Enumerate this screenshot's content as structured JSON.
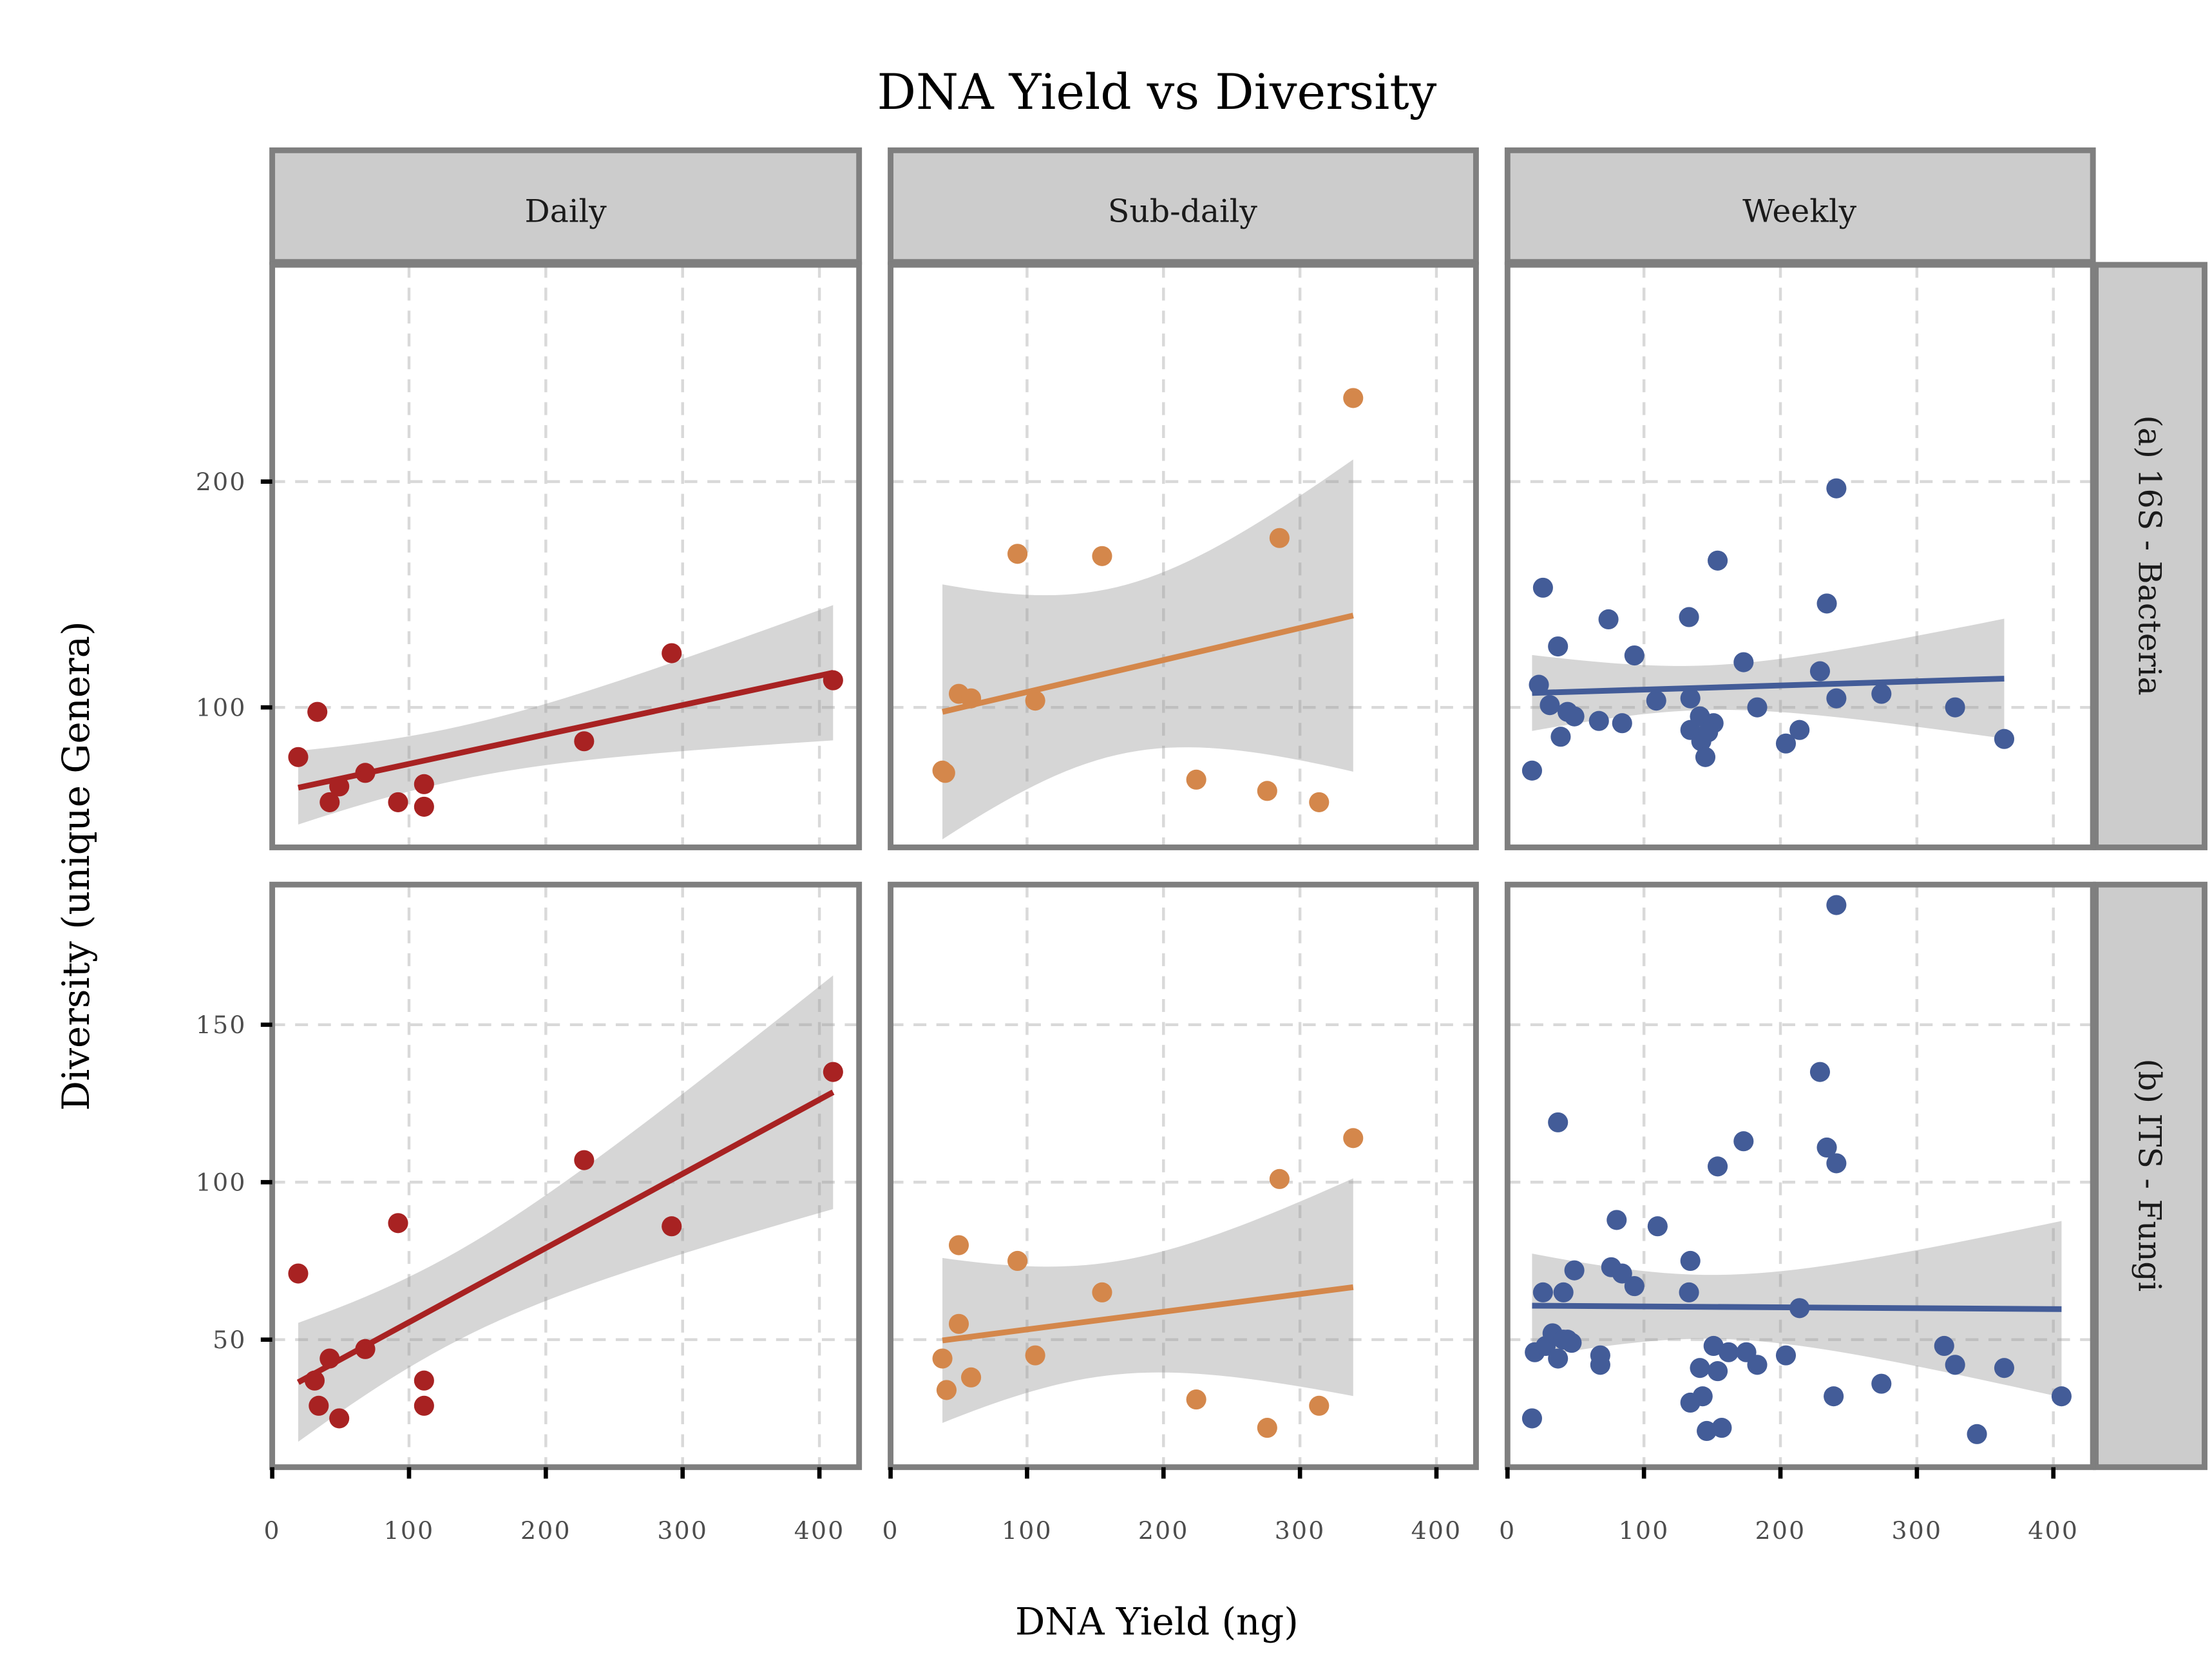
{
  "chart_data": {
    "type": "scatter",
    "title": "DNA Yield vs Diversity",
    "xlabel": "DNA Yield (ng)",
    "ylabel": "Diversity (unique Genera)",
    "grid": true,
    "facet_columns": [
      "Daily",
      "Sub-daily",
      "Weekly"
    ],
    "facet_rows": [
      "(a) 16S - Bacteria",
      "(b) ITS - Fungi"
    ],
    "colors": {
      "Daily": "#a82222",
      "Sub-daily": "#d4874b",
      "Weekly": "#435c98"
    },
    "smoothing": "linear regression with 95% confidence band",
    "xlim": [
      0,
      429
    ],
    "x_ticks": [
      0,
      100,
      200,
      300,
      400
    ],
    "x_tick_labels": [
      "0",
      "100",
      "200",
      "300",
      "400"
    ],
    "rows": [
      {
        "ylim": [
          38,
          296
        ],
        "y_ticks": [
          100,
          200
        ],
        "y_tick_labels": [
          "100",
          "200"
        ]
      },
      {
        "ylim": [
          9.5,
          194.5
        ],
        "y_ticks": [
          50,
          100,
          150
        ],
        "y_tick_labels": [
          "50",
          "100",
          "150"
        ]
      }
    ],
    "panels": [
      {
        "row": 0,
        "col": 0,
        "facet": "Daily",
        "marker": "(a) 16S - Bacteria",
        "x": [
          19,
          33,
          42,
          49,
          68,
          92,
          111,
          111,
          228,
          292,
          410
        ],
        "y": [
          78,
          98,
          58,
          65,
          71,
          58,
          66,
          56,
          85,
          124,
          112
        ]
      },
      {
        "row": 0,
        "col": 1,
        "facet": "Sub-daily",
        "marker": "(a) 16S - Bacteria",
        "x": [
          38,
          40,
          50,
          59,
          93,
          106,
          155,
          224,
          276,
          285,
          314,
          339
        ],
        "y": [
          72,
          71,
          106,
          104,
          168,
          103,
          167,
          68,
          63,
          175,
          58,
          237
        ]
      },
      {
        "row": 0,
        "col": 2,
        "facet": "Weekly",
        "marker": "(a) 16S - Bacteria",
        "x": [
          23,
          26,
          31,
          37,
          39,
          44,
          49,
          18,
          67,
          74,
          84,
          93,
          109,
          133,
          134,
          134,
          141,
          142,
          145,
          151,
          147,
          154,
          183,
          173,
          204,
          214,
          229,
          234,
          241,
          241,
          274,
          328,
          364
        ],
        "y": [
          110,
          153,
          101,
          127,
          87,
          98,
          96,
          72,
          94,
          139,
          93,
          123,
          103,
          140,
          104,
          90,
          96,
          85,
          78,
          93,
          89,
          165,
          100,
          120,
          84,
          90,
          116,
          146,
          197,
          104,
          106,
          100,
          86
        ]
      },
      {
        "row": 1,
        "col": 0,
        "facet": "Daily",
        "marker": "(b) ITS - Fungi",
        "x": [
          19,
          31,
          34,
          42,
          49,
          68,
          92,
          111,
          111,
          228,
          292,
          410
        ],
        "y": [
          71,
          37,
          29,
          44,
          25,
          47,
          87,
          37,
          29,
          107,
          86,
          135
        ]
      },
      {
        "row": 1,
        "col": 1,
        "facet": "Sub-daily",
        "marker": "(b) ITS - Fungi",
        "x": [
          38,
          41,
          50,
          50,
          59,
          93,
          106,
          155,
          224,
          276,
          285,
          314,
          339
        ],
        "y": [
          44,
          34,
          80,
          55,
          38,
          75,
          45,
          65,
          31,
          22,
          101,
          29,
          114
        ]
      },
      {
        "row": 1,
        "col": 2,
        "facet": "Weekly",
        "marker": "(b) ITS - Fungi",
        "x": [
          18,
          20,
          26,
          28,
          33,
          37,
          37,
          41,
          44,
          49,
          41,
          47,
          68,
          68,
          76,
          80,
          84,
          93,
          110,
          133,
          134,
          134,
          141,
          143,
          146,
          151,
          154,
          157,
          154,
          162,
          173,
          175,
          183,
          204,
          214,
          229,
          234,
          239,
          241,
          241,
          274,
          320,
          328,
          344,
          364,
          406
        ],
        "y": [
          25,
          46,
          65,
          48,
          52,
          119,
          44,
          65,
          50,
          72,
          50,
          49,
          45,
          42,
          73,
          88,
          71,
          67,
          86,
          65,
          75,
          30,
          41,
          32,
          21,
          48,
          40,
          22,
          105,
          46,
          113,
          46,
          42,
          45,
          60,
          135,
          111,
          32,
          106,
          188,
          36,
          48,
          42,
          20,
          41,
          32
        ]
      }
    ]
  }
}
